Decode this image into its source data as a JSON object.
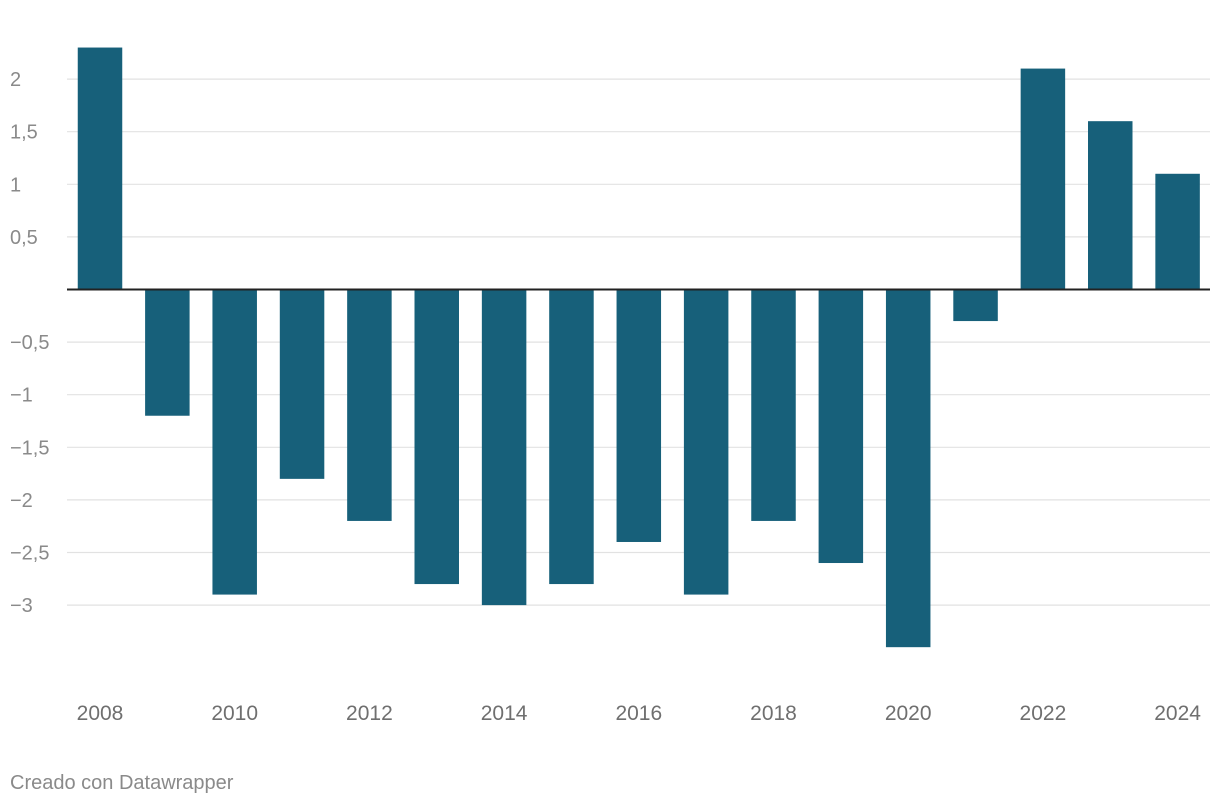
{
  "chart_data": {
    "type": "bar",
    "title": "",
    "xlabel": "",
    "ylabel": "",
    "categories": [
      "2008",
      "2009",
      "2010",
      "2011",
      "2012",
      "2013",
      "2014",
      "2015",
      "2016",
      "2017",
      "2018",
      "2019",
      "2020",
      "2021",
      "2022",
      "2023",
      "2024"
    ],
    "values": [
      2.3,
      -1.2,
      -2.9,
      -1.8,
      -2.2,
      -2.8,
      -3.0,
      -2.8,
      -2.4,
      -2.9,
      -2.2,
      -2.6,
      -3.4,
      -0.3,
      2.1,
      1.6,
      1.1
    ],
    "ylim": [
      -3.7,
      2.3
    ],
    "y_ticks": [
      2,
      1.5,
      1,
      0.5,
      0,
      -0.5,
      -1,
      -1.5,
      -2,
      -2.5,
      -3
    ],
    "y_tick_labels": [
      "2",
      "1,5",
      "1",
      "0,5",
      "",
      "−0,5",
      "−1",
      "−1,5",
      "−2",
      "−2,5",
      "−3"
    ],
    "x_tick_labels": [
      "2008",
      "2010",
      "2012",
      "2014",
      "2016",
      "2018",
      "2020",
      "2022",
      "2024"
    ],
    "x_tick_indices": [
      0,
      2,
      4,
      6,
      8,
      10,
      12,
      14,
      16
    ],
    "grid": true,
    "bar_color": "#17607a",
    "grid_color": "#e2e2e2",
    "axis_color": "#222222",
    "tick_label_color": "#8a8a8a",
    "x_label_color": "#6f6f6f"
  },
  "footer": {
    "credit": "Creado con Datawrapper"
  }
}
